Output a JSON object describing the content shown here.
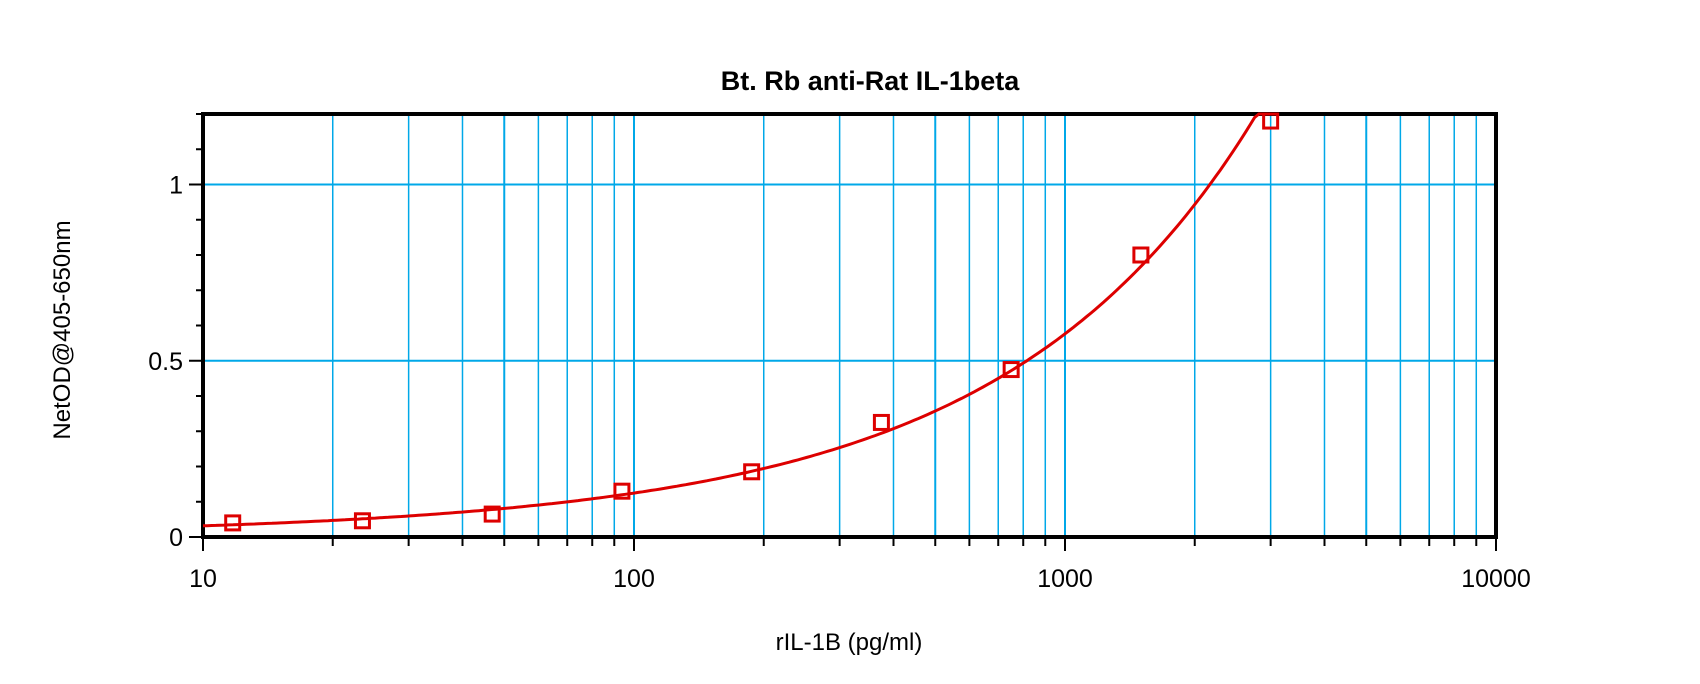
{
  "chart_data": {
    "type": "scatter",
    "title": "Bt. Rb anti-Rat IL-1beta",
    "xlabel": "rIL-1B (pg/ml)",
    "ylabel": "NetOD@405-650nm",
    "x_scale": "log",
    "xlim": [
      10,
      10000
    ],
    "ylim": [
      0,
      1.2
    ],
    "x_ticks": [
      "10",
      "100",
      "1000",
      "10000"
    ],
    "y_ticks": [
      "0",
      "0.5",
      "1"
    ],
    "grid": true,
    "marker": "open-square",
    "fit_curve": true,
    "colors": {
      "series": "#dd0000",
      "grid": "#00a8e8",
      "axis": "#000000"
    },
    "series": [
      {
        "x": [
          11.72,
          23.44,
          46.88,
          93.75,
          187.5,
          375,
          750,
          1500,
          3000
        ],
        "y": [
          0.04,
          0.046,
          0.065,
          0.13,
          0.185,
          0.325,
          0.475,
          0.8,
          1.18
        ]
      }
    ]
  }
}
